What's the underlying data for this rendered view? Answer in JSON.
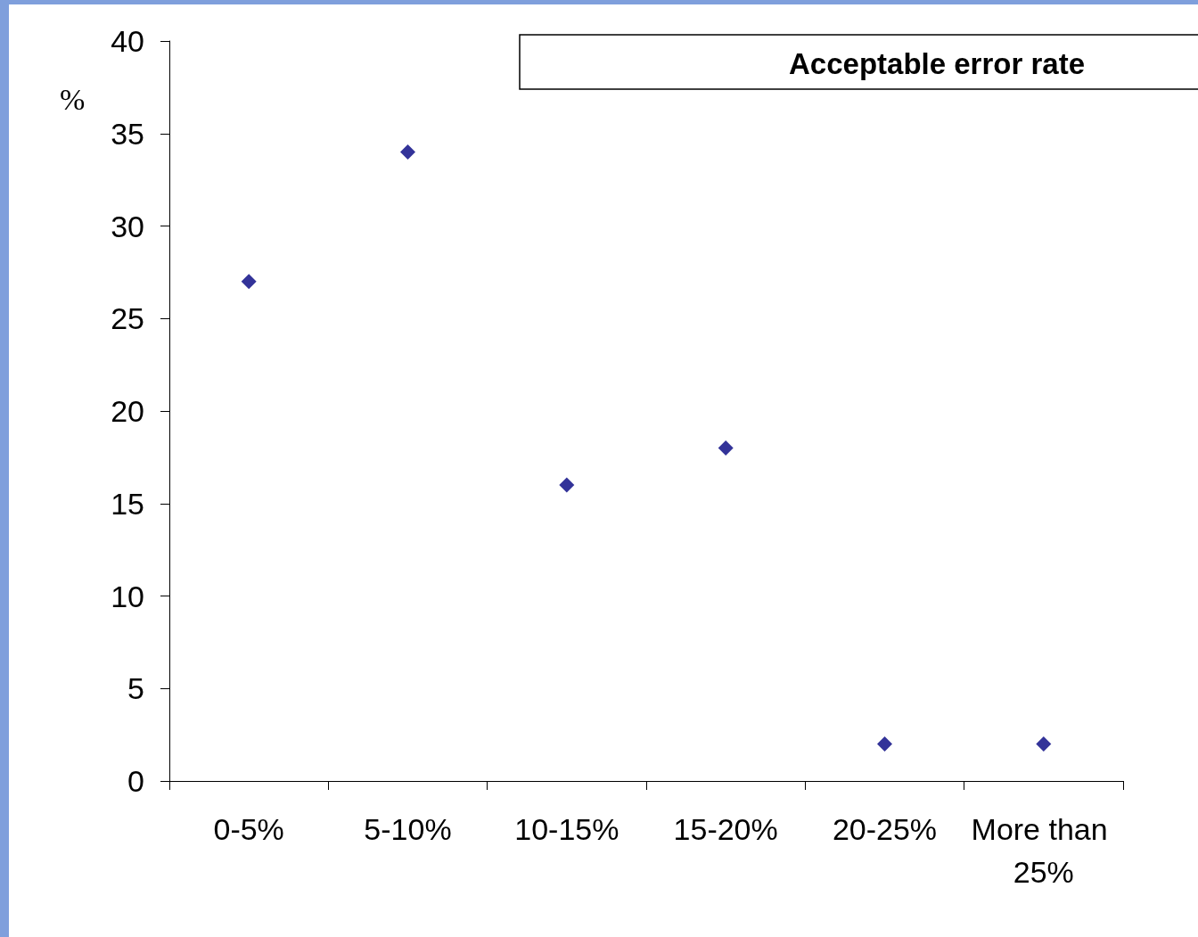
{
  "chart_data": {
    "type": "scatter",
    "title": "Acceptable error rate",
    "ylabel": "%",
    "categories": [
      "0-5%",
      "5-10%",
      "10-15%",
      "15-20%",
      "20-25%",
      "More than 25%"
    ],
    "series": [
      {
        "color": "#000080",
        "values": [
          27,
          34,
          16,
          18,
          2,
          2
        ]
      }
    ],
    "ylim": [
      0,
      40
    ],
    "yticks": [
      0,
      5,
      10,
      15,
      20,
      25,
      30,
      35,
      40
    ],
    "marker": "diamond",
    "grid": false
  }
}
